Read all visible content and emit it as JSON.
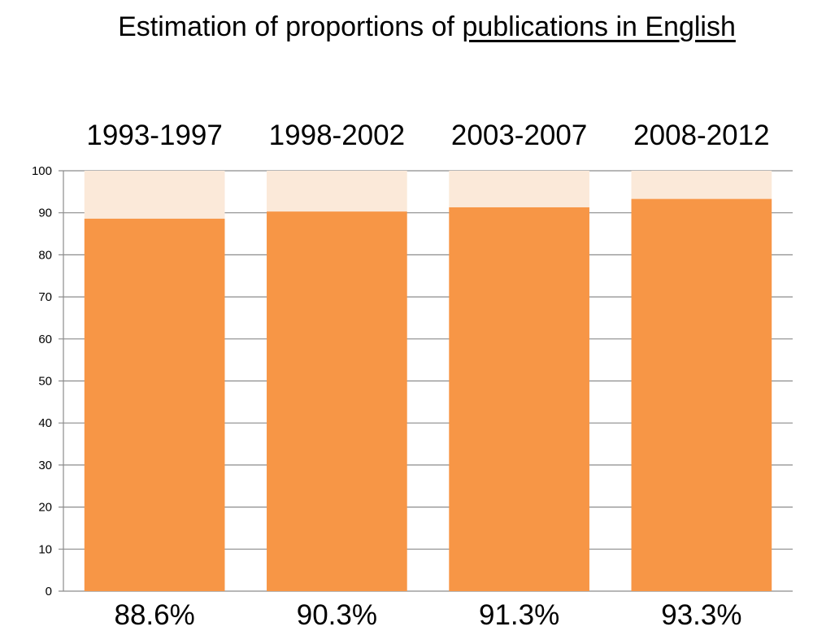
{
  "chart_data": {
    "type": "bar",
    "stacked": true,
    "title_parts": [
      "Estimation of proportions of ",
      "publications in English"
    ],
    "categories": [
      "1993-1997",
      "1998-2002",
      "2003-2007",
      "2008-2012"
    ],
    "values": [
      88.6,
      90.3,
      91.3,
      93.3
    ],
    "value_labels": [
      "88.6%",
      "90.3%",
      "91.3%",
      "93.3%"
    ],
    "total": 100,
    "ylim": [
      0,
      100
    ],
    "yticks": [
      0,
      10,
      20,
      30,
      40,
      50,
      60,
      70,
      80,
      90,
      100
    ],
    "grid": true,
    "colors": {
      "english": "#f79646",
      "remainder": "#fbe9d9",
      "grid": "#8c8c8c"
    }
  }
}
